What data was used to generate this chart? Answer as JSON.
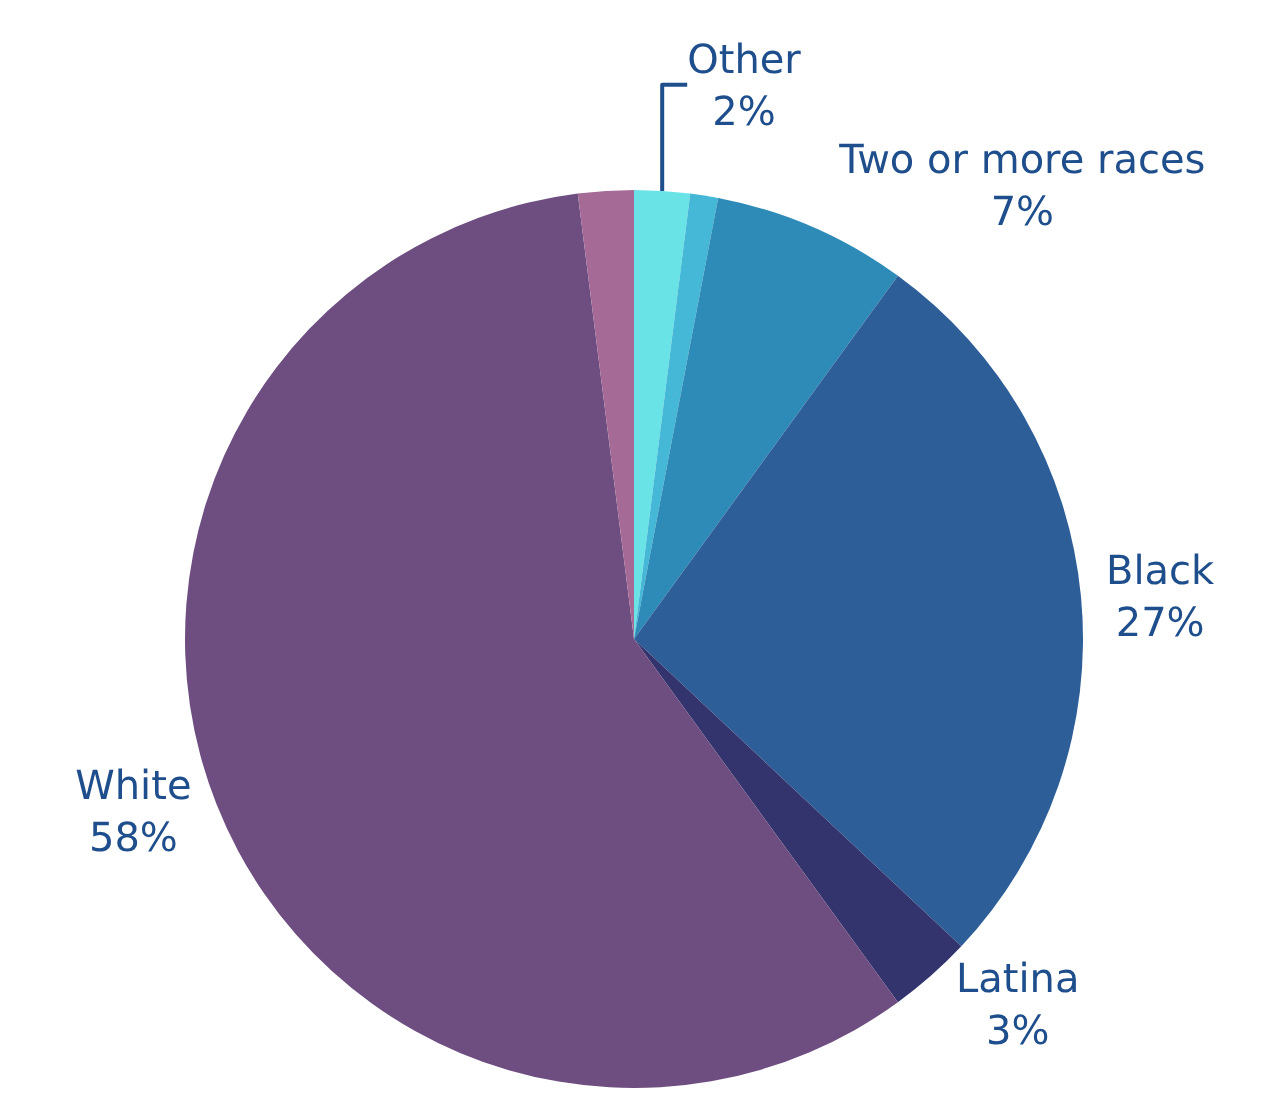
{
  "chart_data": {
    "type": "pie",
    "categories": [
      "Other",
      null,
      "Two or more races",
      "Black",
      "Latina",
      "White",
      null
    ],
    "values": [
      2,
      1,
      7,
      27,
      3,
      58,
      2
    ],
    "value_labels": [
      "2%",
      null,
      "7%",
      "27%",
      "3%",
      "58%",
      null
    ],
    "colors": [
      "#6ae3e6",
      "#44b8d6",
      "#2e8bb8",
      "#2e5e98",
      "#33346d",
      "#6e4e80",
      "#a56b96"
    ],
    "legend": false
  }
}
